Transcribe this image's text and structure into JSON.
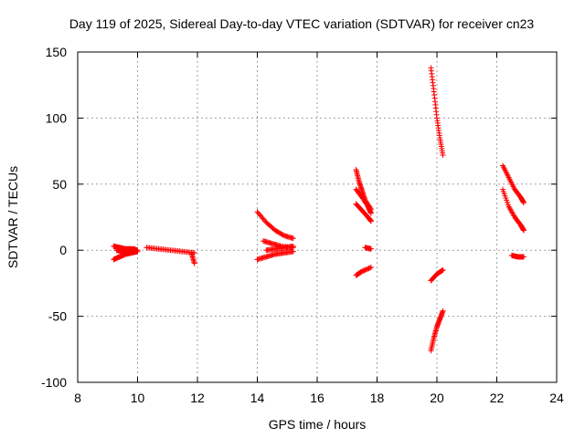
{
  "chart_data": {
    "type": "scatter",
    "title": "Day 119 of 2025, Sidereal Day-to-day VTEC variation (SDTVAR) for receiver cn23",
    "xlabel": "GPS time / hours",
    "ylabel": "SDTVAR / TECUs",
    "xlim": [
      8,
      24
    ],
    "ylim": [
      -100,
      150
    ],
    "xticks": [
      "8",
      "10",
      "12",
      "14",
      "16",
      "18",
      "20",
      "22",
      "24"
    ],
    "yticks": [
      "150",
      "100",
      "50",
      "0",
      "-50",
      "-100"
    ],
    "grid": true,
    "marker": "+",
    "color": "#ff0000",
    "series": [
      {
        "name": "seg1",
        "x": [
          9.2,
          9.4,
          9.6,
          9.8,
          10.0
        ],
        "y": [
          3,
          2,
          1,
          1,
          0
        ]
      },
      {
        "name": "seg2",
        "x": [
          9.2,
          9.4,
          9.6,
          9.8,
          10.0
        ],
        "y": [
          -7,
          -5,
          -3,
          -2,
          -1
        ]
      },
      {
        "name": "seg3",
        "x": [
          9.3,
          9.5,
          9.7,
          9.9
        ],
        "y": [
          0,
          -1,
          0,
          1
        ]
      },
      {
        "name": "seg4",
        "x": [
          10.3,
          10.7,
          11.1,
          11.5,
          11.9
        ],
        "y": [
          2,
          1,
          0,
          -1,
          -2
        ]
      },
      {
        "name": "seg5",
        "x": [
          11.8,
          11.9
        ],
        "y": [
          -2,
          -10
        ]
      },
      {
        "name": "seg6",
        "x": [
          14.0,
          14.3,
          14.6,
          14.9,
          15.2
        ],
        "y": [
          29,
          21,
          15,
          11,
          9
        ]
      },
      {
        "name": "seg7",
        "x": [
          14.0,
          14.3,
          14.6,
          14.9,
          15.2
        ],
        "y": [
          -7,
          -5,
          -3,
          -2,
          -1
        ]
      },
      {
        "name": "seg8",
        "x": [
          14.2,
          14.5,
          14.8,
          15.2
        ],
        "y": [
          7,
          5,
          3,
          2
        ]
      },
      {
        "name": "seg9",
        "x": [
          14.3,
          14.6,
          14.9,
          15.2
        ],
        "y": [
          0,
          1,
          2,
          3
        ]
      },
      {
        "name": "seg10",
        "x": [
          17.3,
          17.4,
          17.5,
          17.6,
          17.8
        ],
        "y": [
          61,
          52,
          45,
          38,
          31
        ]
      },
      {
        "name": "seg11",
        "x": [
          17.3,
          17.5,
          17.7,
          17.8
        ],
        "y": [
          46,
          40,
          33,
          28
        ]
      },
      {
        "name": "seg12",
        "x": [
          17.3,
          17.5,
          17.7,
          17.8
        ],
        "y": [
          35,
          30,
          25,
          22
        ]
      },
      {
        "name": "seg13",
        "x": [
          17.6,
          17.8
        ],
        "y": [
          2,
          1
        ]
      },
      {
        "name": "seg14",
        "x": [
          17.3,
          17.5,
          17.8
        ],
        "y": [
          -19,
          -16,
          -13
        ]
      },
      {
        "name": "seg15",
        "x": [
          19.8,
          19.9,
          20.0,
          20.1,
          20.2
        ],
        "y": [
          138,
          120,
          100,
          85,
          72
        ]
      },
      {
        "name": "seg16",
        "x": [
          19.8,
          20.0,
          20.2
        ],
        "y": [
          -23,
          -18,
          -15
        ]
      },
      {
        "name": "seg17",
        "x": [
          19.8,
          19.9,
          20.0,
          20.1,
          20.2
        ],
        "y": [
          -76,
          -66,
          -58,
          -52,
          -46
        ]
      },
      {
        "name": "seg18",
        "x": [
          22.2,
          22.4,
          22.6,
          22.8,
          22.9
        ],
        "y": [
          64,
          55,
          46,
          40,
          36
        ]
      },
      {
        "name": "seg19",
        "x": [
          22.2,
          22.4,
          22.6,
          22.8,
          22.9
        ],
        "y": [
          46,
          33,
          25,
          19,
          15
        ]
      },
      {
        "name": "seg20",
        "x": [
          22.5,
          22.7,
          22.9
        ],
        "y": [
          -4,
          -5,
          -5
        ]
      }
    ]
  }
}
